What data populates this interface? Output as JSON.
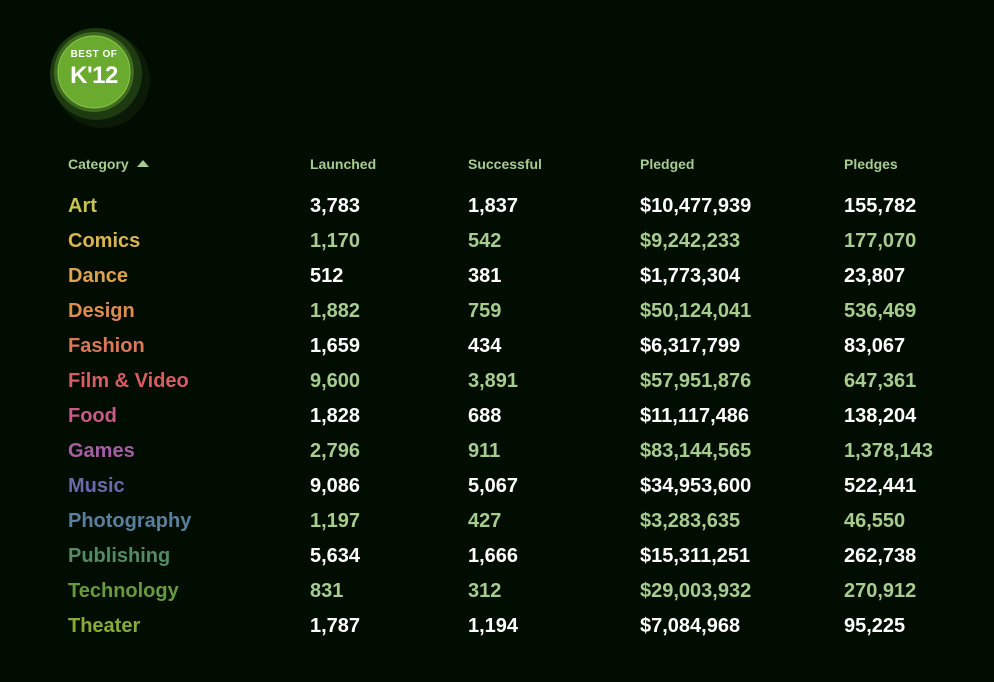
{
  "badge": {
    "top_text": "BEST OF",
    "main_text": "K'12"
  },
  "headers": {
    "category": "Category",
    "launched": "Launched",
    "successful": "Successful",
    "pledged": "Pledged",
    "pledges": "Pledges"
  },
  "colors": {
    "background": "#000d00",
    "header": "#a7cc8f",
    "badge_green": "#6aaa2e"
  },
  "rows": [
    {
      "category": "Art",
      "color": "#c9c24f",
      "launched": "3,783",
      "successful": "1,837",
      "pledged": "$10,477,939",
      "pledges": "155,782"
    },
    {
      "category": "Comics",
      "color": "#d9b450",
      "launched": "1,170",
      "successful": "542",
      "pledged": "$9,242,233",
      "pledges": "177,070"
    },
    {
      "category": "Dance",
      "color": "#dea24f",
      "launched": "512",
      "successful": "381",
      "pledged": "$1,773,304",
      "pledges": "23,807"
    },
    {
      "category": "Design",
      "color": "#de8c4f",
      "launched": "1,882",
      "successful": "759",
      "pledged": "$50,124,041",
      "pledges": "536,469"
    },
    {
      "category": "Fashion",
      "color": "#dc7757",
      "launched": "1,659",
      "successful": "434",
      "pledged": "$6,317,799",
      "pledges": "83,067"
    },
    {
      "category": "Film & Video",
      "color": "#d75d63",
      "launched": "9,600",
      "successful": "3,891",
      "pledged": "$57,951,876",
      "pledges": "647,361"
    },
    {
      "category": "Food",
      "color": "#c75a86",
      "launched": "1,828",
      "successful": "688",
      "pledged": "$11,117,486",
      "pledges": "138,204"
    },
    {
      "category": "Games",
      "color": "#a45fa3",
      "launched": "2,796",
      "successful": "911",
      "pledged": "$83,144,565",
      "pledges": "1,378,143"
    },
    {
      "category": "Music",
      "color": "#6c68ac",
      "launched": "9,086",
      "successful": "5,067",
      "pledged": "$34,953,600",
      "pledges": "522,441"
    },
    {
      "category": "Photography",
      "color": "#5a7f9e",
      "launched": "1,197",
      "successful": "427",
      "pledged": "$3,283,635",
      "pledges": "46,550"
    },
    {
      "category": "Publishing",
      "color": "#548a64",
      "launched": "5,634",
      "successful": "1,666",
      "pledged": "$15,311,251",
      "pledges": "262,738"
    },
    {
      "category": "Technology",
      "color": "#669a3f",
      "launched": "831",
      "successful": "312",
      "pledged": "$29,003,932",
      "pledges": "270,912"
    },
    {
      "category": "Theater",
      "color": "#86ac35",
      "launched": "1,787",
      "successful": "1,194",
      "pledged": "$7,084,968",
      "pledges": "95,225"
    }
  ]
}
